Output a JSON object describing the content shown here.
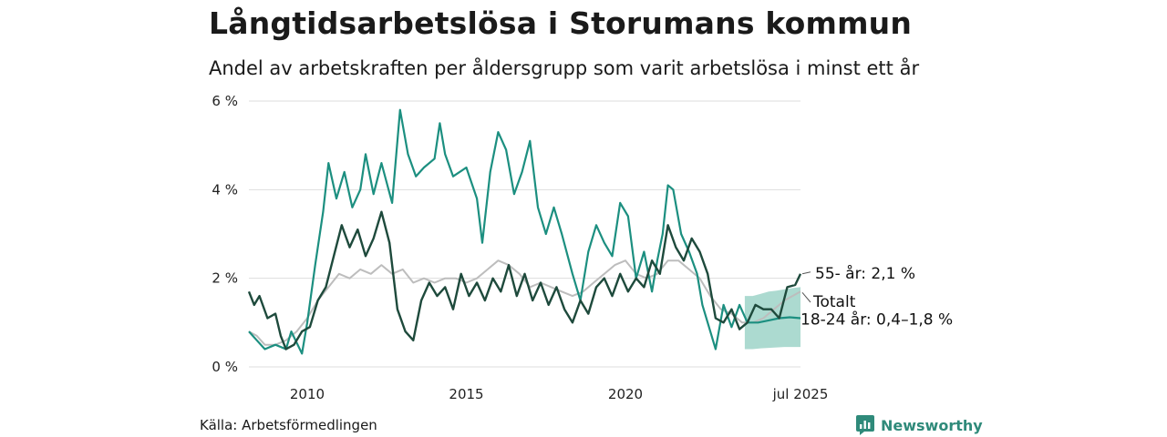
{
  "title": "Långtidsarbetslösa i Storumans kommun",
  "subtitle": "Andel av arbetskraften per åldersgrupp som varit arbetslösa i minst ett år",
  "source": "Källa: Arbetsförmedlingen",
  "brand": "Newsworthy",
  "colors": {
    "age_55": "#1e4a3c",
    "age_18_24": "#1c8f80",
    "total": "#bdbdbd",
    "band": "#9ed3c8",
    "grid": "#dddddd",
    "brand": "#2f8a7a"
  },
  "chart_data": {
    "type": "line",
    "x_range": [
      "2008-03",
      "2025-07"
    ],
    "ylim": [
      0,
      6
    ],
    "y_ticks": [
      0,
      2,
      4,
      6
    ],
    "y_tick_labels": [
      "0 %",
      "2 %",
      "4 %",
      "6 %"
    ],
    "x_tick_labels": [
      "2010",
      "2015",
      "2020",
      "jul 2025"
    ],
    "x_tick_dates": [
      "2010-01",
      "2015-01",
      "2020-01",
      "2025-07"
    ],
    "grid": true,
    "end_labels": {
      "age_55": "55- år: 2,1 %",
      "total": "Totalt",
      "age_18_24": "18-24 år: 0,4–1,8 %"
    },
    "series": [
      {
        "key": "total",
        "values": [
          [
            "2008-03",
            0.8
          ],
          [
            "2008-06",
            0.7
          ],
          [
            "2008-09",
            0.5
          ],
          [
            "2009-01",
            0.5
          ],
          [
            "2009-05",
            0.6
          ],
          [
            "2009-09",
            0.8
          ],
          [
            "2010-01",
            1.1
          ],
          [
            "2010-05",
            1.5
          ],
          [
            "2010-09",
            1.8
          ],
          [
            "2011-01",
            2.1
          ],
          [
            "2011-05",
            2.0
          ],
          [
            "2011-09",
            2.2
          ],
          [
            "2012-01",
            2.1
          ],
          [
            "2012-05",
            2.3
          ],
          [
            "2012-09",
            2.1
          ],
          [
            "2013-01",
            2.2
          ],
          [
            "2013-05",
            1.9
          ],
          [
            "2013-09",
            2.0
          ],
          [
            "2014-01",
            1.9
          ],
          [
            "2014-05",
            2.0
          ],
          [
            "2014-09",
            2.0
          ],
          [
            "2015-01",
            1.9
          ],
          [
            "2015-05",
            2.0
          ],
          [
            "2015-09",
            2.2
          ],
          [
            "2016-01",
            2.4
          ],
          [
            "2016-05",
            2.3
          ],
          [
            "2016-09",
            2.1
          ],
          [
            "2017-01",
            1.8
          ],
          [
            "2017-05",
            1.9
          ],
          [
            "2017-09",
            1.8
          ],
          [
            "2018-01",
            1.7
          ],
          [
            "2018-05",
            1.6
          ],
          [
            "2018-09",
            1.7
          ],
          [
            "2019-01",
            1.9
          ],
          [
            "2019-05",
            2.1
          ],
          [
            "2019-09",
            2.3
          ],
          [
            "2020-01",
            2.4
          ],
          [
            "2020-05",
            2.1
          ],
          [
            "2020-09",
            2.0
          ],
          [
            "2021-01",
            2.1
          ],
          [
            "2021-05",
            2.4
          ],
          [
            "2021-09",
            2.4
          ],
          [
            "2022-01",
            2.2
          ],
          [
            "2022-05",
            2.0
          ],
          [
            "2022-09",
            1.6
          ],
          [
            "2023-01",
            1.3
          ],
          [
            "2023-05",
            1.2
          ],
          [
            "2023-09",
            1.0
          ],
          [
            "2024-01",
            1.0
          ],
          [
            "2024-05",
            1.1
          ],
          [
            "2024-09",
            1.3
          ],
          [
            "2025-01",
            1.5
          ],
          [
            "2025-07",
            1.7
          ]
        ]
      },
      {
        "key": "age_18_24",
        "values": [
          [
            "2008-03",
            0.8
          ],
          [
            "2008-06",
            0.6
          ],
          [
            "2008-09",
            0.4
          ],
          [
            "2009-01",
            0.5
          ],
          [
            "2009-05",
            0.4
          ],
          [
            "2009-07",
            0.8
          ],
          [
            "2009-11",
            0.3
          ],
          [
            "2010-01",
            1.0
          ],
          [
            "2010-04",
            2.3
          ],
          [
            "2010-07",
            3.5
          ],
          [
            "2010-09",
            4.6
          ],
          [
            "2010-12",
            3.8
          ],
          [
            "2011-03",
            4.4
          ],
          [
            "2011-06",
            3.6
          ],
          [
            "2011-09",
            4.0
          ],
          [
            "2011-11",
            4.8
          ],
          [
            "2012-02",
            3.9
          ],
          [
            "2012-05",
            4.6
          ],
          [
            "2012-09",
            3.7
          ],
          [
            "2012-12",
            5.8
          ],
          [
            "2013-03",
            4.8
          ],
          [
            "2013-06",
            4.3
          ],
          [
            "2013-09",
            4.5
          ],
          [
            "2014-01",
            4.7
          ],
          [
            "2014-03",
            5.5
          ],
          [
            "2014-05",
            4.8
          ],
          [
            "2014-08",
            4.3
          ],
          [
            "2015-01",
            4.5
          ],
          [
            "2015-05",
            3.8
          ],
          [
            "2015-07",
            2.8
          ],
          [
            "2015-10",
            4.4
          ],
          [
            "2016-01",
            5.3
          ],
          [
            "2016-04",
            4.9
          ],
          [
            "2016-07",
            3.9
          ],
          [
            "2016-10",
            4.4
          ],
          [
            "2017-01",
            5.1
          ],
          [
            "2017-04",
            3.6
          ],
          [
            "2017-07",
            3.0
          ],
          [
            "2017-10",
            3.6
          ],
          [
            "2018-01",
            3.0
          ],
          [
            "2018-05",
            2.1
          ],
          [
            "2018-08",
            1.5
          ],
          [
            "2018-11",
            2.6
          ],
          [
            "2019-02",
            3.2
          ],
          [
            "2019-05",
            2.8
          ],
          [
            "2019-08",
            2.5
          ],
          [
            "2019-11",
            3.7
          ],
          [
            "2020-02",
            3.4
          ],
          [
            "2020-05",
            2.0
          ],
          [
            "2020-08",
            2.6
          ],
          [
            "2020-11",
            1.7
          ],
          [
            "2021-01",
            2.4
          ],
          [
            "2021-03",
            3.0
          ],
          [
            "2021-05",
            4.1
          ],
          [
            "2021-07",
            4.0
          ],
          [
            "2021-10",
            3.0
          ],
          [
            "2022-01",
            2.6
          ],
          [
            "2022-04",
            2.1
          ],
          [
            "2022-06",
            1.4
          ],
          [
            "2022-09",
            0.8
          ],
          [
            "2022-11",
            0.4
          ],
          [
            "2023-02",
            1.4
          ],
          [
            "2023-05",
            0.9
          ],
          [
            "2023-08",
            1.4
          ],
          [
            "2023-11",
            1.0
          ],
          [
            "2024-03",
            1.0
          ],
          [
            "2024-07",
            1.05
          ],
          [
            "2024-11",
            1.1
          ],
          [
            "2025-03",
            1.12
          ],
          [
            "2025-07",
            1.1
          ]
        ]
      },
      {
        "key": "age_55",
        "values": [
          [
            "2008-03",
            1.7
          ],
          [
            "2008-05",
            1.4
          ],
          [
            "2008-07",
            1.6
          ],
          [
            "2008-10",
            1.1
          ],
          [
            "2009-01",
            1.2
          ],
          [
            "2009-03",
            0.7
          ],
          [
            "2009-05",
            0.4
          ],
          [
            "2009-08",
            0.5
          ],
          [
            "2009-11",
            0.8
          ],
          [
            "2010-02",
            0.9
          ],
          [
            "2010-05",
            1.5
          ],
          [
            "2010-08",
            1.8
          ],
          [
            "2010-11",
            2.5
          ],
          [
            "2011-02",
            3.2
          ],
          [
            "2011-05",
            2.7
          ],
          [
            "2011-08",
            3.1
          ],
          [
            "2011-11",
            2.5
          ],
          [
            "2012-02",
            2.9
          ],
          [
            "2012-05",
            3.5
          ],
          [
            "2012-08",
            2.8
          ],
          [
            "2012-11",
            1.3
          ],
          [
            "2013-02",
            0.8
          ],
          [
            "2013-05",
            0.6
          ],
          [
            "2013-08",
            1.5
          ],
          [
            "2013-11",
            1.9
          ],
          [
            "2014-02",
            1.6
          ],
          [
            "2014-05",
            1.8
          ],
          [
            "2014-08",
            1.3
          ],
          [
            "2014-11",
            2.1
          ],
          [
            "2015-02",
            1.6
          ],
          [
            "2015-05",
            1.9
          ],
          [
            "2015-08",
            1.5
          ],
          [
            "2015-11",
            2.0
          ],
          [
            "2016-02",
            1.7
          ],
          [
            "2016-05",
            2.3
          ],
          [
            "2016-08",
            1.6
          ],
          [
            "2016-11",
            2.1
          ],
          [
            "2017-02",
            1.5
          ],
          [
            "2017-05",
            1.9
          ],
          [
            "2017-08",
            1.4
          ],
          [
            "2017-11",
            1.8
          ],
          [
            "2018-02",
            1.3
          ],
          [
            "2018-05",
            1.0
          ],
          [
            "2018-08",
            1.5
          ],
          [
            "2018-11",
            1.2
          ],
          [
            "2019-02",
            1.8
          ],
          [
            "2019-05",
            2.0
          ],
          [
            "2019-08",
            1.6
          ],
          [
            "2019-11",
            2.1
          ],
          [
            "2020-02",
            1.7
          ],
          [
            "2020-05",
            2.0
          ],
          [
            "2020-08",
            1.8
          ],
          [
            "2020-11",
            2.4
          ],
          [
            "2021-02",
            2.1
          ],
          [
            "2021-05",
            3.2
          ],
          [
            "2021-08",
            2.7
          ],
          [
            "2021-11",
            2.4
          ],
          [
            "2022-02",
            2.9
          ],
          [
            "2022-05",
            2.6
          ],
          [
            "2022-08",
            2.1
          ],
          [
            "2022-11",
            1.1
          ],
          [
            "2023-02",
            1.0
          ],
          [
            "2023-05",
            1.3
          ],
          [
            "2023-08",
            0.85
          ],
          [
            "2023-11",
            1.0
          ],
          [
            "2024-02",
            1.4
          ],
          [
            "2024-05",
            1.3
          ],
          [
            "2024-08",
            1.3
          ],
          [
            "2024-11",
            1.1
          ],
          [
            "2025-02",
            1.8
          ],
          [
            "2025-05",
            1.85
          ],
          [
            "2025-07",
            2.1
          ]
        ]
      }
    ],
    "band": {
      "key": "age_18_24_interval",
      "values": [
        [
          "2023-10",
          0.4,
          1.6
        ],
        [
          "2024-01",
          0.4,
          1.6
        ],
        [
          "2024-04",
          0.42,
          1.65
        ],
        [
          "2024-07",
          0.43,
          1.7
        ],
        [
          "2024-10",
          0.44,
          1.72
        ],
        [
          "2025-01",
          0.45,
          1.75
        ],
        [
          "2025-04",
          0.45,
          1.78
        ],
        [
          "2025-07",
          0.45,
          1.8
        ]
      ]
    }
  }
}
